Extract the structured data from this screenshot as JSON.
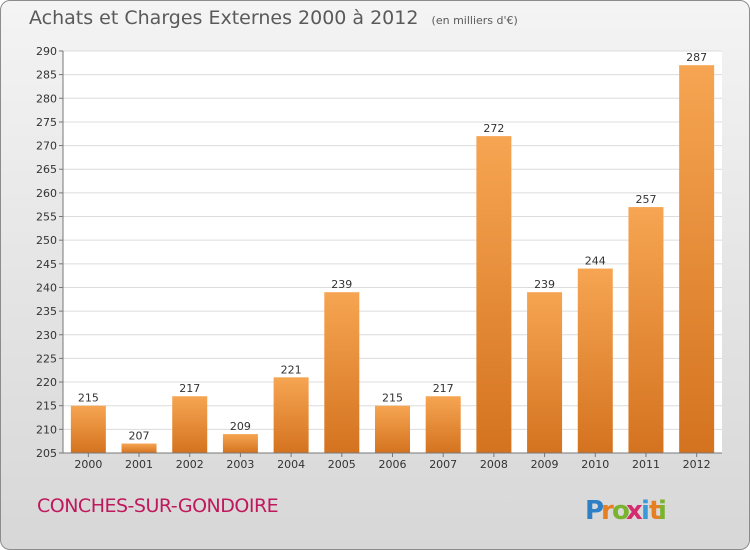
{
  "chart_data": {
    "type": "bar",
    "title": "Achats et Charges Externes 2000 à 2012",
    "unit_label": "(en milliers d'€)",
    "categories": [
      "2000",
      "2001",
      "2002",
      "2003",
      "2004",
      "2005",
      "2006",
      "2007",
      "2008",
      "2009",
      "2010",
      "2011",
      "2012"
    ],
    "values": [
      215,
      207,
      217,
      209,
      221,
      239,
      215,
      217,
      272,
      239,
      244,
      257,
      287
    ],
    "ylim": [
      205,
      290
    ],
    "ytick_step": 5,
    "grid": true,
    "legend": "none",
    "bar_color_top": "#f6a552",
    "bar_color_bottom": "#d4731f",
    "axis_text_color": "#333333"
  },
  "location": "CONCHES-SUR-GONDOIRE",
  "logo": {
    "letters": [
      "P",
      "r",
      "o",
      "x",
      "i",
      "t",
      "i"
    ],
    "colors": [
      "#2e7fc6",
      "#e67e22",
      "#7ab32e",
      "#d62c6f",
      "#3a9ad9",
      "#e67e22",
      "#7ab32e"
    ]
  }
}
